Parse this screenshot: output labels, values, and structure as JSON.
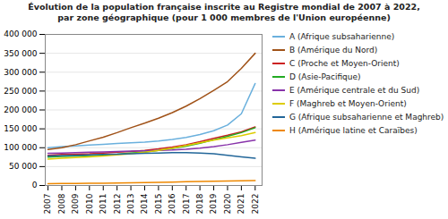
{
  "chart_data": {
    "type": "line",
    "title": "Évolution de la population française inscrite au Registre mondial de 2007 à 2022,\npar zone géographique (pour 1 000 membres de l'Union européenne)",
    "x": [
      2007,
      2008,
      2009,
      2010,
      2011,
      2012,
      2013,
      2014,
      2015,
      2016,
      2017,
      2018,
      2019,
      2020,
      2021,
      2022
    ],
    "series": [
      {
        "name": "A (Afrique subsaharienne)",
        "color": "#6ab0dd",
        "values": [
          100000,
          103000,
          105000,
          107000,
          109000,
          111000,
          113000,
          115000,
          118000,
          122000,
          127000,
          135000,
          145000,
          160000,
          190000,
          270000
        ]
      },
      {
        "name": "B (Amérique du Nord)",
        "color": "#a05218",
        "values": [
          95000,
          100000,
          108000,
          118000,
          128000,
          140000,
          153000,
          165000,
          178000,
          193000,
          210000,
          230000,
          252000,
          275000,
          310000,
          350000
        ]
      },
      {
        "name": "C (Proche et Moyen-Orient)",
        "color": "#cc2222",
        "values": [
          80000,
          82000,
          83000,
          84000,
          86000,
          88000,
          90000,
          93000,
          97000,
          102000,
          108000,
          116000,
          125000,
          133000,
          142000,
          155000
        ]
      },
      {
        "name": "D (Asie-Pacifique)",
        "color": "#22aa22",
        "values": [
          75000,
          77000,
          78000,
          79000,
          81000,
          83000,
          86000,
          89000,
          93000,
          98000,
          104000,
          112000,
          121000,
          130000,
          140000,
          153000
        ]
      },
      {
        "name": "E (Amérique centrale et du Sud)",
        "color": "#8833aa",
        "values": [
          85000,
          86000,
          87000,
          88000,
          89000,
          90000,
          91000,
          92000,
          93000,
          94000,
          96000,
          99000,
          103000,
          108000,
          114000,
          120000
        ]
      },
      {
        "name": "F (Maghreb et Moyen-Orient)",
        "color": "#ddcc00",
        "values": [
          70000,
          72000,
          74000,
          76000,
          78000,
          81000,
          84000,
          88000,
          93000,
          99000,
          106000,
          113000,
          120000,
          126000,
          132000,
          140000
        ]
      },
      {
        "name": "G (Afrique subsaharienne et Maghreb)",
        "color": "#226699",
        "values": [
          78000,
          79000,
          80000,
          81000,
          82000,
          83000,
          84000,
          85000,
          86000,
          87000,
          87000,
          86000,
          84000,
          80000,
          76000,
          72000
        ]
      },
      {
        "name": "H (Amérique latine et Caraïbes)",
        "color": "#ee8800",
        "values": [
          5000,
          5200,
          5500,
          5800,
          6200,
          6700,
          7200,
          7800,
          8400,
          9100,
          9800,
          10500,
          11200,
          11800,
          12300,
          12800
        ]
      }
    ],
    "xlim": [
      2006.8,
      2022.5
    ],
    "xticks": [
      2007,
      2008,
      2009,
      2010,
      2011,
      2012,
      2013,
      2014,
      2015,
      2016,
      2017,
      2018,
      2019,
      2020,
      2021,
      2022
    ],
    "ylim": [
      0,
      400000
    ],
    "yticks": [
      0,
      {
        "value": 50000,
        "label": "50 000"
      },
      {
        "value": 100000,
        "label": "100 000"
      },
      {
        "value": 150000,
        "label": "150 000"
      },
      {
        "value": 200000,
        "label": "200 000"
      },
      {
        "value": 250000,
        "label": "250 000"
      },
      {
        "value": 300000,
        "label": "300 000"
      },
      {
        "value": 350000,
        "label": "350 000"
      },
      {
        "value": 400000,
        "label": "400 000"
      }
    ],
    "grid": true,
    "legend": "right"
  }
}
